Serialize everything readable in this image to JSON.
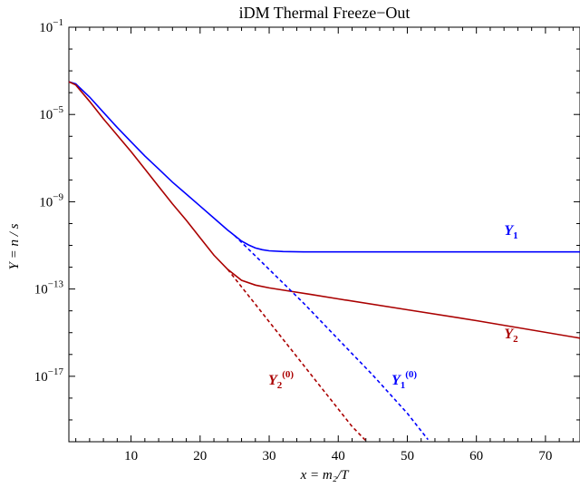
{
  "chart_data": {
    "type": "line",
    "title": "iDM Thermal Freeze−Out",
    "xlabel": "x = m₂/T",
    "ylabel": "Y = n / s",
    "yscale": "log",
    "xlim": [
      1,
      75
    ],
    "ylim_log10": [
      -20,
      -1
    ],
    "x_ticks": [
      10,
      20,
      30,
      40,
      50,
      60,
      70
    ],
    "x_tick_labels": [
      "10",
      "20",
      "30",
      "40",
      "50",
      "60",
      "70"
    ],
    "y_ticks_log10": [
      -1,
      -5,
      -9,
      -13,
      -17
    ],
    "y_tick_labels": [
      {
        "base": "10",
        "exp": "−1"
      },
      {
        "base": "10",
        "exp": "−5"
      },
      {
        "base": "10",
        "exp": "−9"
      },
      {
        "base": "10",
        "exp": "−13"
      },
      {
        "base": "10",
        "exp": "−17"
      }
    ],
    "series": [
      {
        "name": "Y1",
        "label_main": "Y",
        "label_sub": "1",
        "color": "#0000ff",
        "style": "solid",
        "x": [
          1,
          2,
          4,
          6,
          8,
          10,
          12,
          14,
          16,
          18,
          20,
          22,
          24,
          25,
          26,
          27,
          28,
          29,
          30,
          32,
          35,
          40,
          50,
          60,
          75
        ],
        "log10_y": [
          -3.5,
          -3.6,
          -4.2,
          -4.9,
          -5.6,
          -6.25,
          -6.9,
          -7.5,
          -8.1,
          -8.65,
          -9.2,
          -9.75,
          -10.3,
          -10.55,
          -10.8,
          -10.98,
          -11.12,
          -11.2,
          -11.25,
          -11.28,
          -11.3,
          -11.3,
          -11.3,
          -11.3,
          -11.3
        ]
      },
      {
        "name": "Y2",
        "label_main": "Y",
        "label_sub": "2",
        "color": "#aa0000",
        "style": "solid",
        "x": [
          1,
          2,
          4,
          6,
          8,
          10,
          12,
          14,
          16,
          18,
          20,
          22,
          24,
          26,
          28,
          30,
          33,
          36,
          40,
          50,
          60,
          75
        ],
        "log10_y": [
          -3.5,
          -3.65,
          -4.4,
          -5.2,
          -5.95,
          -6.7,
          -7.5,
          -8.3,
          -9.1,
          -9.85,
          -10.65,
          -11.45,
          -12.1,
          -12.6,
          -12.82,
          -12.95,
          -13.1,
          -13.25,
          -13.45,
          -13.95,
          -14.45,
          -15.25
        ]
      },
      {
        "name": "Y1(0)",
        "label_main": "Y",
        "label_sub": "1",
        "label_sup": "(0)",
        "color": "#0000ff",
        "style": "dashed",
        "x": [
          25,
          30,
          35,
          40,
          45,
          50,
          53
        ],
        "log10_y": [
          -10.55,
          -12.1,
          -13.65,
          -15.3,
          -16.95,
          -18.7,
          -19.9
        ]
      },
      {
        "name": "Y2(0)",
        "label_main": "Y",
        "label_sub": "2",
        "label_sup": "(0)",
        "color": "#aa0000",
        "style": "dashed",
        "x": [
          24,
          26,
          30,
          34,
          38,
          42,
          44
        ],
        "log10_y": [
          -12.1,
          -12.9,
          -14.5,
          -16.1,
          -17.7,
          -19.3,
          -19.95
        ]
      }
    ]
  }
}
